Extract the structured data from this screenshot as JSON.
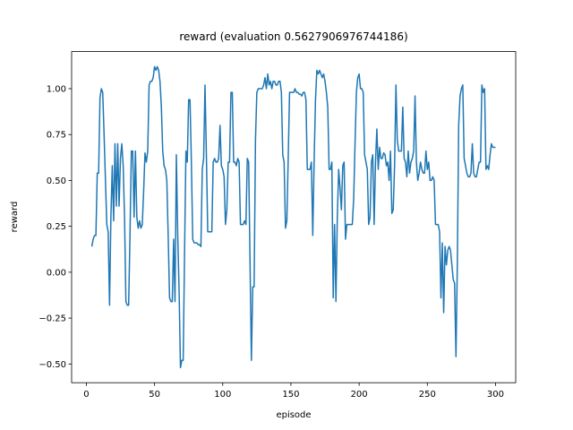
{
  "chart_data": {
    "type": "line",
    "title": "reward (evaluation 0.5627906976744186)",
    "x_label": "episode",
    "y_label": "reward",
    "color": "#1f77b4",
    "x": [
      4,
      5,
      6,
      7,
      8,
      9,
      10,
      11,
      12,
      13,
      14,
      15,
      16,
      17,
      18,
      19,
      20,
      21,
      22,
      23,
      24,
      25,
      26,
      27,
      28,
      29,
      30,
      31,
      32,
      33,
      34,
      35,
      36,
      37,
      38,
      39,
      40,
      41,
      42,
      43,
      44,
      45,
      46,
      47,
      48,
      49,
      50,
      51,
      52,
      53,
      54,
      55,
      56,
      57,
      58,
      59,
      60,
      61,
      62,
      63,
      64,
      65,
      66,
      67,
      68,
      69,
      70,
      71,
      72,
      73,
      74,
      75,
      76,
      77,
      78,
      79,
      80,
      81,
      82,
      83,
      84,
      85,
      86,
      87,
      88,
      89,
      90,
      91,
      92,
      93,
      94,
      95,
      96,
      97,
      98,
      99,
      100,
      101,
      102,
      103,
      104,
      105,
      106,
      107,
      108,
      109,
      110,
      111,
      112,
      113,
      114,
      115,
      116,
      117,
      118,
      119,
      120,
      121,
      122,
      123,
      124,
      125,
      126,
      127,
      128,
      129,
      130,
      131,
      132,
      133,
      134,
      135,
      136,
      137,
      138,
      139,
      140,
      141,
      142,
      143,
      144,
      145,
      146,
      147,
      148,
      149,
      150,
      151,
      152,
      153,
      154,
      155,
      156,
      157,
      158,
      159,
      160,
      161,
      162,
      163,
      164,
      165,
      166,
      167,
      168,
      169,
      170,
      171,
      172,
      173,
      174,
      175,
      176,
      177,
      178,
      179,
      180,
      181,
      182,
      183,
      184,
      185,
      186,
      187,
      188,
      189,
      190,
      191,
      192,
      193,
      194,
      195,
      196,
      197,
      198,
      199,
      200,
      201,
      202,
      203,
      204,
      205,
      206,
      207,
      208,
      209,
      210,
      211,
      212,
      213,
      214,
      215,
      216,
      217,
      218,
      219,
      220,
      221,
      222,
      223,
      224,
      225,
      226,
      227,
      228,
      229,
      230,
      231,
      232,
      233,
      234,
      235,
      236,
      237,
      238,
      239,
      240,
      241,
      242,
      243,
      244,
      245,
      246,
      247,
      248,
      249,
      250,
      251,
      252,
      253,
      254,
      255,
      256,
      257,
      258,
      259,
      260,
      261,
      262,
      263,
      264,
      265,
      266,
      267,
      268,
      269,
      270,
      271,
      272,
      273,
      274,
      275,
      276,
      277,
      278,
      279,
      280,
      281,
      282,
      283,
      284,
      285,
      286,
      287,
      288,
      289,
      290,
      291,
      292,
      293,
      294,
      295,
      296,
      297,
      298,
      299,
      300
    ],
    "values": [
      0.14,
      0.18,
      0.2,
      0.2,
      0.54,
      0.54,
      0.95,
      1.0,
      0.98,
      0.75,
      0.5,
      0.26,
      0.22,
      -0.18,
      0.3,
      0.58,
      0.28,
      0.7,
      0.36,
      0.7,
      0.36,
      0.62,
      0.7,
      0.58,
      0.3,
      -0.16,
      -0.18,
      -0.18,
      0.2,
      0.66,
      0.66,
      0.3,
      0.66,
      0.3,
      0.24,
      0.28,
      0.24,
      0.26,
      0.44,
      0.65,
      0.6,
      0.66,
      1.02,
      1.04,
      1.04,
      1.06,
      1.12,
      1.1,
      1.12,
      1.1,
      1.04,
      0.9,
      0.66,
      0.58,
      0.56,
      0.5,
      0.2,
      -0.14,
      -0.16,
      -0.16,
      0.18,
      -0.16,
      0.64,
      0.2,
      -0.1,
      -0.52,
      -0.48,
      -0.48,
      0.1,
      0.66,
      0.6,
      0.94,
      0.94,
      0.6,
      0.18,
      0.16,
      0.16,
      0.16,
      0.15,
      0.15,
      0.14,
      0.56,
      0.62,
      1.02,
      0.64,
      0.22,
      0.22,
      0.22,
      0.22,
      0.6,
      0.62,
      0.6,
      0.6,
      0.62,
      0.8,
      0.58,
      0.56,
      0.52,
      0.26,
      0.34,
      0.6,
      0.6,
      0.98,
      0.98,
      0.6,
      0.6,
      0.58,
      0.62,
      0.6,
      0.26,
      0.26,
      0.26,
      0.28,
      0.26,
      0.62,
      0.6,
      0.06,
      -0.48,
      -0.08,
      -0.08,
      0.72,
      0.98,
      1.0,
      1.0,
      1.0,
      1.0,
      1.02,
      1.06,
      1.0,
      1.08,
      1.02,
      1.04,
      1.0,
      1.04,
      1.04,
      1.02,
      1.02,
      1.04,
      1.04,
      0.98,
      0.64,
      0.6,
      0.24,
      0.28,
      0.62,
      0.98,
      0.98,
      0.98,
      0.98,
      1.0,
      0.98,
      0.98,
      0.97,
      0.97,
      0.96,
      0.98,
      0.98,
      0.94,
      0.56,
      0.56,
      0.56,
      0.6,
      0.2,
      0.6,
      0.94,
      1.1,
      1.08,
      1.1,
      1.08,
      1.06,
      1.08,
      1.04,
      0.98,
      0.9,
      0.56,
      0.56,
      0.6,
      -0.14,
      0.26,
      -0.16,
      0.3,
      0.56,
      0.46,
      0.34,
      0.58,
      0.6,
      0.18,
      0.26,
      0.26,
      0.26,
      0.26,
      0.26,
      0.4,
      0.7,
      0.98,
      1.06,
      1.08,
      1.0,
      1.0,
      0.98,
      0.64,
      0.6,
      0.56,
      0.26,
      0.3,
      0.6,
      0.64,
      0.26,
      0.6,
      0.78,
      0.56,
      0.68,
      0.62,
      0.62,
      0.65,
      0.64,
      0.58,
      0.6,
      0.5,
      0.66,
      0.32,
      0.34,
      0.58,
      1.02,
      0.72,
      0.66,
      0.66,
      0.66,
      0.9,
      0.62,
      0.6,
      0.52,
      0.66,
      0.54,
      0.6,
      0.62,
      0.66,
      0.96,
      0.6,
      0.5,
      0.54,
      0.6,
      0.56,
      0.54,
      0.54,
      0.66,
      0.56,
      0.6,
      0.5,
      0.5,
      0.52,
      0.5,
      0.26,
      0.26,
      0.26,
      0.22,
      -0.14,
      0.16,
      -0.22,
      0.14,
      0.04,
      0.12,
      0.14,
      0.12,
      0.04,
      -0.04,
      -0.06,
      -0.46,
      0.04,
      0.8,
      0.96,
      1.0,
      1.02,
      0.62,
      0.58,
      0.54,
      0.52,
      0.52,
      0.54,
      0.7,
      0.54,
      0.52,
      0.52,
      0.56,
      0.6,
      0.6,
      1.02,
      0.98,
      1.0,
      0.56,
      0.58,
      0.56,
      0.64,
      0.7,
      0.68,
      0.68,
      0.68
    ],
    "xlim": [
      -10.8,
      314.8
    ],
    "xticks": [
      0,
      50,
      100,
      150,
      200,
      250,
      300
    ],
    "ylim": [
      -0.602,
      1.202
    ],
    "yticks": [
      {
        "value": -0.5,
        "label": "−0.50"
      },
      {
        "value": -0.25,
        "label": "−0.25"
      },
      {
        "value": 0,
        "label": "0.00"
      },
      {
        "value": 0.25,
        "label": "0.25"
      },
      {
        "value": 0.5,
        "label": "0.50"
      },
      {
        "value": 0.75,
        "label": "0.75"
      },
      {
        "value": 1,
        "label": "1.00"
      }
    ]
  }
}
